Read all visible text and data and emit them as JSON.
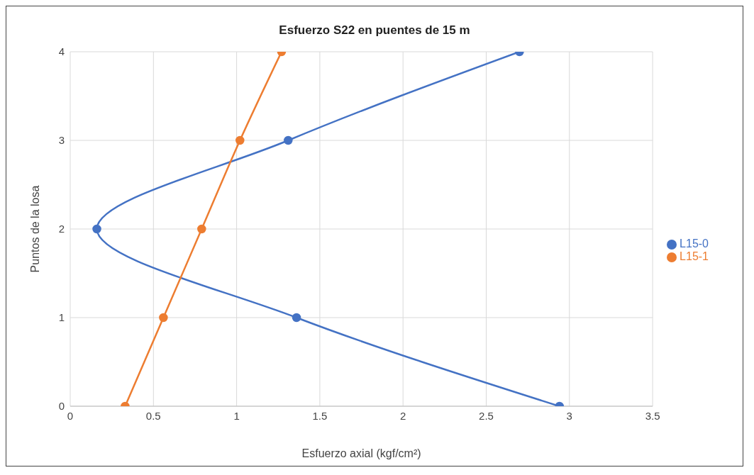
{
  "chart_data": {
    "type": "line",
    "title": "Esfuerzo S22 en puentes de 15 m",
    "xlabel": "Esfuerzo axial (kgf/cm²)",
    "ylabel": "Puntos de la losa",
    "series": [
      {
        "name": "L15-0",
        "color": "#4472c4",
        "x": [
          2.94,
          1.36,
          0.16,
          1.31,
          2.7
        ],
        "values": [
          0,
          1,
          2,
          3,
          4
        ]
      },
      {
        "name": "L15-1",
        "color": "#ed7d31",
        "x": [
          0.33,
          0.56,
          0.79,
          1.02,
          1.27
        ],
        "values": [
          0,
          1,
          2,
          3,
          4
        ]
      }
    ],
    "xlim": [
      0,
      3.5
    ],
    "xticks": [
      0,
      0.5,
      1,
      1.5,
      2,
      2.5,
      3,
      3.5
    ],
    "ylim": [
      0,
      4
    ],
    "yticks": [
      0,
      1,
      2,
      3,
      4
    ],
    "grid": true,
    "legend": "right",
    "marker": "circle",
    "line_style": "solid"
  }
}
